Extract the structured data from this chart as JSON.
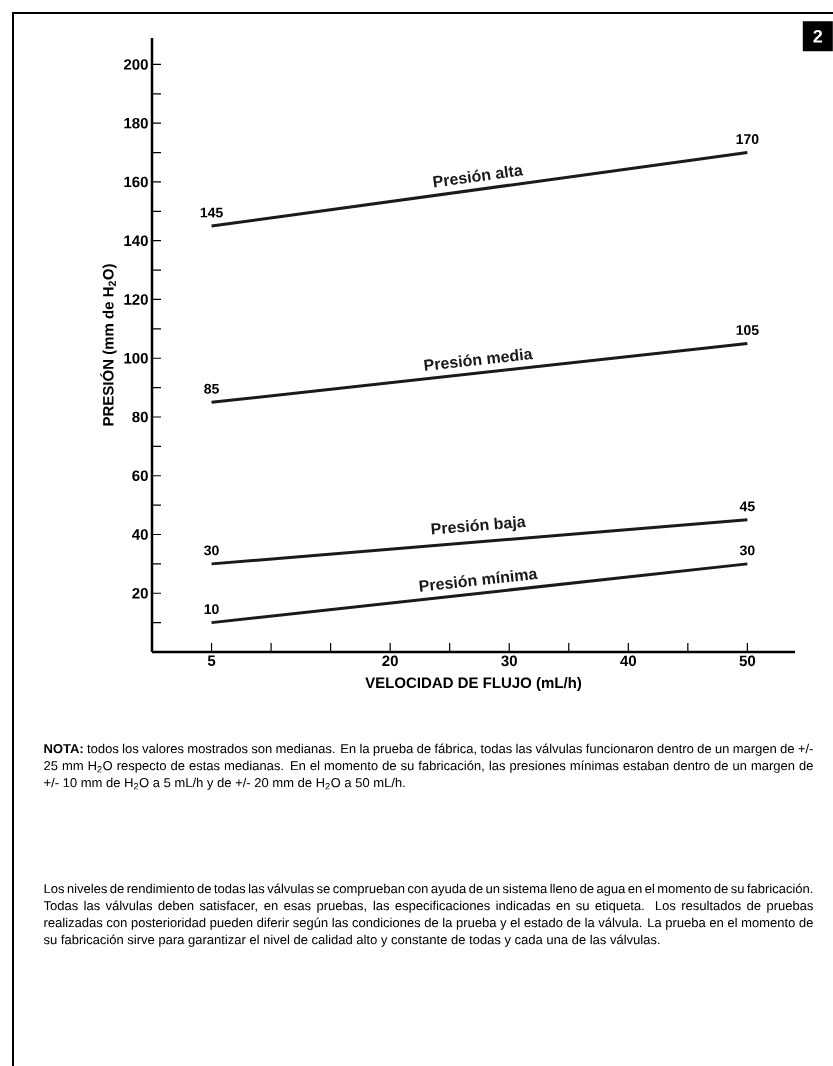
{
  "chart_data": {
    "type": "line",
    "xlabel": "VELOCIDAD DE FLUJO (mL/h)",
    "ylabel": "PRESIÓN (mm de H$_{2}$O)",
    "x": [
      5,
      50
    ],
    "series": [
      {
        "name": "Presión alta",
        "color": "#1a1a1a",
        "values": [
          145,
          170
        ]
      },
      {
        "name": "Presión media",
        "color": "#1a1a1a",
        "values": [
          85,
          105
        ]
      },
      {
        "name": "Presión baja",
        "color": "#1a1a1a",
        "values": [
          30,
          45
        ]
      },
      {
        "name": "Presión mínima",
        "color": "#1a1a1a",
        "values": [
          10,
          30
        ]
      }
    ],
    "xlim": [
      0,
      54
    ],
    "ylim": [
      0,
      209
    ],
    "xticks": [
      5,
      {
        "value": 10,
        "label": null
      },
      {
        "value": 15,
        "label": null
      },
      20,
      {
        "value": 25,
        "label": null
      },
      30,
      {
        "value": 35,
        "label": null
      },
      40,
      {
        "value": 45,
        "label": null
      },
      50
    ],
    "yticks": [
      {
        "value": 10,
        "label": null
      },
      20,
      {
        "value": 30,
        "label": null
      },
      40,
      {
        "value": 50,
        "label": null
      },
      60,
      {
        "value": 70,
        "label": null
      },
      80,
      {
        "value": 90,
        "label": null
      },
      100,
      {
        "value": 110,
        "label": null
      },
      120,
      {
        "value": 130,
        "label": null
      },
      140,
      {
        "value": 150,
        "label": null
      },
      160,
      {
        "value": 170,
        "label": null
      },
      180,
      {
        "value": 190,
        "label": null
      },
      200
    ],
    "data_labels": true,
    "annotations": [
      "2",
      "**NOTA:** todos los valores mostrados son medianas. En la prueba de fábrica, todas las válvulas funcionaron dentro de un margen de +/- 25 mm H$_{2}$O respecto de estas medianas. En el momento de su fabricación, las presiones mínimas estaban dentro de un margen de +/- 10 mm de H$_{2}$O a 5 mL/h y de +/- 20 mm de H$_{2}$O a 50 mL/h.",
      "Los niveles de rendimiento de todas las válvulas se comprueban con ayuda de un sistema lleno de agua en el momento de su fabricación. Todas las válvulas deben satisfacer, en esas pruebas, las especificaciones indicadas en su etiqueta. Los resultados de pruebas realizadas con posterioridad pueden diferir según las condiciones de la prueba y el estado de la válvula. La prueba en el momento de su fabricación sirve para garantizar el nivel de calidad alto y constante de todas y cada una de las válvulas."
    ]
  }
}
